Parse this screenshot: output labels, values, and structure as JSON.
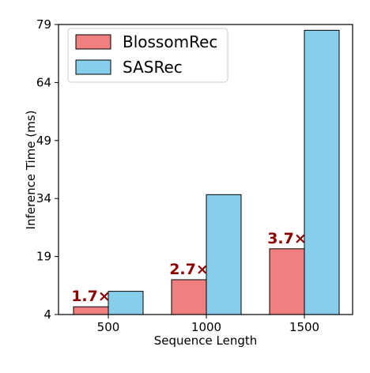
{
  "chart_data": {
    "type": "bar",
    "title": "",
    "xlabel": "Sequence Length",
    "ylabel": "Inference Time (ms)",
    "categories": [
      "500",
      "1000",
      "1500"
    ],
    "ylim": [
      4,
      79
    ],
    "yticks": [
      4,
      19,
      34,
      49,
      64,
      79
    ],
    "legend_position": "top-left",
    "grid": false,
    "series": [
      {
        "name": "BlossomRec",
        "color": "#F08080",
        "values": [
          6,
          13,
          21
        ]
      },
      {
        "name": "SASRec",
        "color": "#87CEEB",
        "values": [
          10,
          35,
          77.5
        ]
      }
    ],
    "annotations": [
      {
        "category": "500",
        "text": "1.7×",
        "color": "#8B0000"
      },
      {
        "category": "1000",
        "text": "2.7×",
        "color": "#8B0000"
      },
      {
        "category": "1500",
        "text": "3.7×",
        "color": "#8B0000"
      }
    ]
  }
}
